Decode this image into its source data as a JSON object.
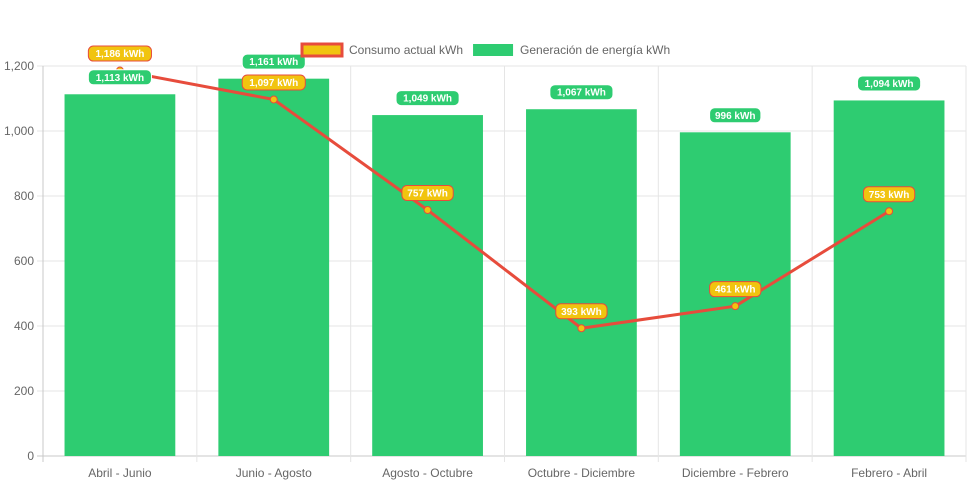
{
  "chart_data": {
    "type": "bar",
    "categories": [
      "Abril - Junio",
      "Junio - Agosto",
      "Agosto - Octubre",
      "Octubre - Diciembre",
      "Diciembre - Febrero",
      "Febrero - Abril"
    ],
    "series": [
      {
        "name": "Generación de energía kWh",
        "type": "bar",
        "color": "#2ecc71",
        "values": [
          1113,
          1161,
          1049,
          1067,
          996,
          1094
        ],
        "labels": [
          "1,113 kWh",
          "1,161 kWh",
          "1,049 kWh",
          "1,067 kWh",
          "996 kWh",
          "1,094 kWh"
        ]
      },
      {
        "name": "Consumo actual kWh",
        "type": "line",
        "color": "#e74c3c",
        "fill_color": "#f1c40f",
        "values": [
          1186,
          1097,
          757,
          393,
          461,
          753
        ],
        "labels": [
          "1,186 kWh",
          "1,097 kWh",
          "757 kWh",
          "393 kWh",
          "461 kWh",
          "753 kWh"
        ]
      }
    ],
    "y_ticks": [
      "0",
      "200",
      "400",
      "600",
      "800",
      "1,000",
      "1,200"
    ],
    "ylim": [
      0,
      1200
    ],
    "xlabel": "",
    "ylabel": "",
    "grid": true,
    "legend_position": "top-center"
  }
}
